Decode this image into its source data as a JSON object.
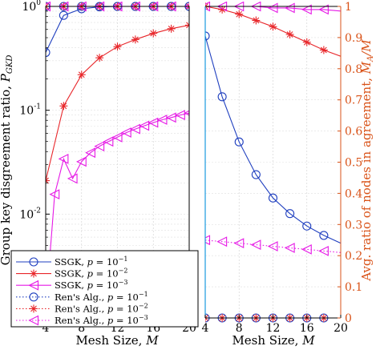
{
  "colors": {
    "ssgk_p1": "#1f3fbf",
    "ssgk_p2": "#e8262a",
    "ssgk_p3": "#e619e6",
    "right_axis": "#d95319"
  },
  "chart_data": [
    {
      "type": "line",
      "yscale": "log",
      "xlabel": "Mesh Size, M",
      "ylabel": "Group key disgreement ratio, P_GKD",
      "xlim": [
        4,
        20
      ],
      "ylim": [
        0.001,
        1
      ],
      "xticks": [
        "4",
        "8",
        "12",
        "16",
        "20"
      ],
      "yticks": [
        "10^-3",
        "10^-2",
        "10^-1",
        "10^0"
      ],
      "grid": true,
      "series": [
        {
          "name": "SSGK, p = 10^-1",
          "style": "solid-circle",
          "color": "#1f3fbf",
          "x": [
            4,
            6,
            8,
            10,
            12,
            14,
            16,
            18,
            20
          ],
          "y": [
            0.36,
            0.82,
            0.95,
            0.99,
            1,
            1,
            1,
            1,
            1
          ]
        },
        {
          "name": "SSGK, p = 10^-2",
          "style": "solid-star",
          "color": "#e8262a",
          "x": [
            4,
            6,
            8,
            10,
            12,
            14,
            16,
            18,
            20
          ],
          "y": [
            0.021,
            0.11,
            0.22,
            0.32,
            0.41,
            0.48,
            0.55,
            0.61,
            0.66
          ]
        },
        {
          "name": "SSGK, p = 10^-3",
          "style": "solid-triangle",
          "color": "#e619e6",
          "x": [
            4,
            5,
            6,
            7,
            8,
            9,
            10,
            11,
            12,
            13,
            14,
            15,
            16,
            17,
            18,
            19,
            20
          ],
          "y": [
            0.0012,
            0.0155,
            0.034,
            0.022,
            0.032,
            0.039,
            0.045,
            0.05,
            0.055,
            0.061,
            0.066,
            0.071,
            0.076,
            0.081,
            0.085,
            0.09,
            0.094
          ]
        },
        {
          "name": "Ren's Alg., p = 10^-1",
          "style": "dotted-circle",
          "color": "#1f3fbf",
          "x": [
            4,
            6,
            8,
            10,
            12,
            14,
            16,
            18,
            20
          ],
          "y": [
            1,
            1,
            1,
            1,
            1,
            1,
            1,
            1,
            1
          ]
        },
        {
          "name": "Ren's Alg., p = 10^-2",
          "style": "dotted-star",
          "color": "#e8262a",
          "x": [
            4,
            6,
            8,
            10,
            12,
            14,
            16,
            18,
            20
          ],
          "y": [
            1,
            1,
            1,
            1,
            1,
            1,
            1,
            1,
            1
          ]
        },
        {
          "name": "Ren's Alg., p = 10^-3",
          "style": "dotted-triangle",
          "color": "#e619e6",
          "x": [
            4,
            6,
            8,
            10,
            12,
            14,
            16,
            18,
            20
          ],
          "y": [
            1,
            1,
            1,
            1,
            1,
            1,
            1,
            1,
            1
          ]
        }
      ]
    },
    {
      "type": "line",
      "xlabel": "Mesh Size, M",
      "ylabel": "Avg. ratio of nodes in agreement, M_A/M",
      "xlim": [
        4,
        20
      ],
      "ylim": [
        0,
        1
      ],
      "xticks": [
        "4",
        "8",
        "12",
        "16",
        "20"
      ],
      "yticks": [
        "0",
        "0.1",
        "0.2",
        "0.3",
        "0.4",
        "0.5",
        "0.6",
        "0.7",
        "0.8",
        "0.9",
        "1"
      ],
      "grid": true,
      "series": [
        {
          "name": "SSGK, p = 10^-1",
          "style": "solid-circle",
          "color": "#1f3fbf",
          "x": [
            4,
            6,
            8,
            10,
            12,
            14,
            16,
            18,
            20
          ],
          "y": [
            0.905,
            0.71,
            0.565,
            0.46,
            0.385,
            0.335,
            0.295,
            0.265,
            0.24
          ]
        },
        {
          "name": "SSGK, p = 10^-2",
          "style": "solid-star",
          "color": "#e8262a",
          "x": [
            4,
            6,
            8,
            10,
            12,
            14,
            16,
            18,
            20
          ],
          "y": [
            1.0,
            0.99,
            0.975,
            0.955,
            0.935,
            0.91,
            0.885,
            0.86,
            0.84
          ]
        },
        {
          "name": "SSGK, p = 10^-3",
          "style": "solid-triangle",
          "color": "#e619e6",
          "x": [
            4,
            6,
            8,
            10,
            12,
            14,
            16,
            18,
            20
          ],
          "y": [
            1.0,
            1.0,
            1.0,
            1.0,
            0.995,
            0.995,
            0.99,
            0.99,
            0.985
          ]
        },
        {
          "name": "Ren's Alg., p = 10^-1",
          "style": "dotted-circle",
          "color": "#1f3fbf",
          "x": [
            4,
            6,
            8,
            10,
            12,
            14,
            16,
            18,
            20
          ],
          "y": [
            0,
            0,
            0,
            0,
            0,
            0,
            0,
            0,
            0
          ]
        },
        {
          "name": "Ren's Alg., p = 10^-2",
          "style": "dotted-star",
          "color": "#e8262a",
          "x": [
            4,
            6,
            8,
            10,
            12,
            14,
            16,
            18,
            20
          ],
          "y": [
            0,
            0,
            0,
            0,
            0,
            0,
            0,
            0,
            0
          ]
        },
        {
          "name": "Ren's Alg., p = 10^-3",
          "style": "dotted-triangle",
          "color": "#e619e6",
          "x": [
            4,
            6,
            8,
            10,
            12,
            14,
            16,
            18,
            20
          ],
          "y": [
            0.25,
            0.245,
            0.24,
            0.235,
            0.23,
            0.225,
            0.22,
            0.215,
            0.21
          ]
        }
      ]
    }
  ],
  "legend": {
    "entries": [
      {
        "label": "SSGK, p = 10",
        "exp": "−1"
      },
      {
        "label": "SSGK, p = 10",
        "exp": "−2"
      },
      {
        "label": "SSGK, p = 10",
        "exp": "−3"
      },
      {
        "label": "Ren's Alg., p = 10",
        "exp": "−1"
      },
      {
        "label": "Ren's Alg., p = 10",
        "exp": "−2"
      },
      {
        "label": "Ren's Alg., p = 10",
        "exp": "−3"
      }
    ]
  }
}
